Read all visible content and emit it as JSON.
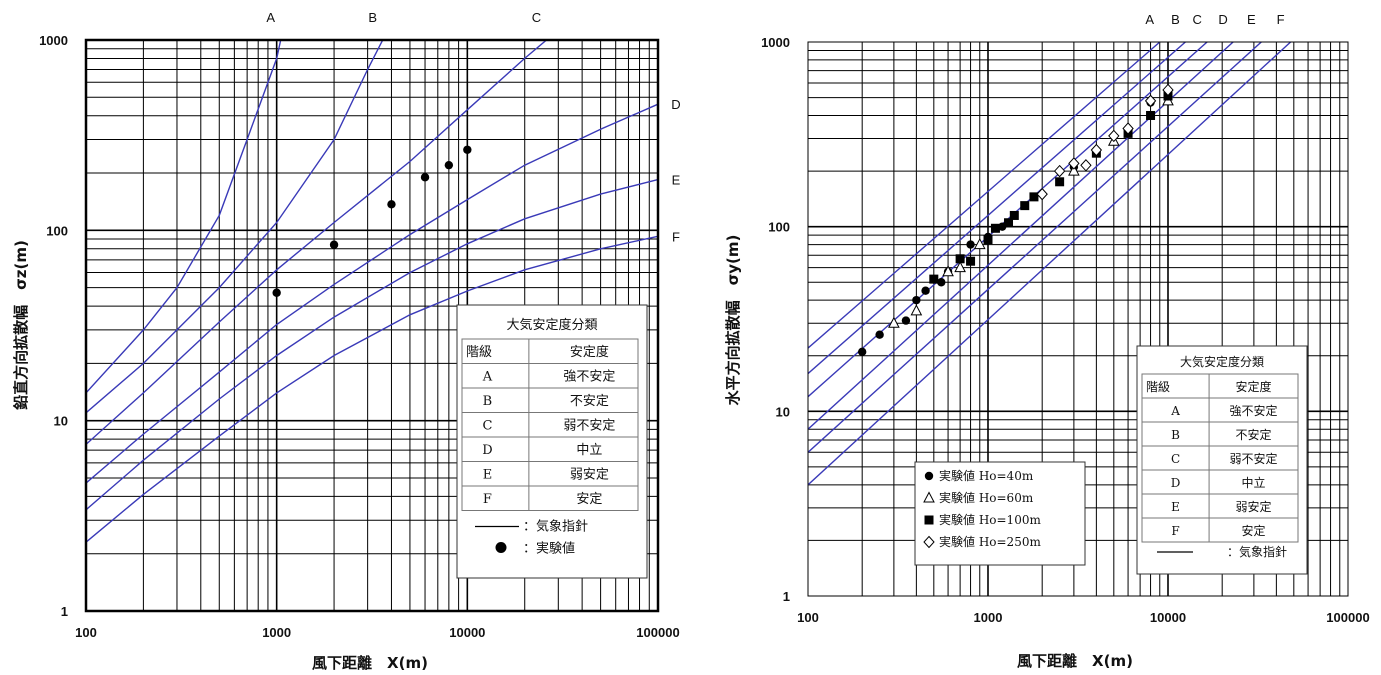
{
  "chart_data": [
    {
      "type": "line",
      "title": "",
      "xlabel": "風下距離　X(m)",
      "ylabel": "鉛直方向拡散幅　σz(m)",
      "xscale": "log",
      "yscale": "log",
      "xlim": [
        100,
        100000
      ],
      "ylim": [
        1,
        1000
      ],
      "x_tick_labels": [
        "100",
        "1000",
        "10000",
        "100000"
      ],
      "y_tick_labels": [
        "1",
        "10",
        "100",
        "1000"
      ],
      "grid": true,
      "line_color": "#3a3ab8",
      "series": [
        {
          "name": "A",
          "x": [
            100,
            200,
            300,
            500,
            700,
            1000,
            1050
          ],
          "y": [
            14,
            30,
            50,
            120,
            300,
            800,
            1000
          ]
        },
        {
          "name": "B",
          "x": [
            100,
            200,
            500,
            1000,
            2000,
            3000,
            3600
          ],
          "y": [
            11,
            20,
            50,
            110,
            300,
            700,
            1000
          ]
        },
        {
          "name": "C",
          "x": [
            100,
            200,
            500,
            1000,
            2000,
            5000,
            10000,
            20000,
            26000
          ],
          "y": [
            7.5,
            14,
            33,
            62,
            110,
            230,
            430,
            800,
            1000
          ]
        },
        {
          "name": "D",
          "x": [
            100,
            200,
            500,
            1000,
            2000,
            5000,
            10000,
            20000,
            50000,
            100000
          ],
          "y": [
            4.7,
            8.5,
            18,
            32,
            52,
            95,
            145,
            220,
            340,
            460
          ]
        },
        {
          "name": "E",
          "x": [
            100,
            200,
            500,
            1000,
            2000,
            5000,
            10000,
            20000,
            50000,
            100000
          ],
          "y": [
            3.4,
            6.2,
            13,
            22,
            35,
            60,
            85,
            115,
            155,
            185
          ]
        },
        {
          "name": "F",
          "x": [
            100,
            200,
            500,
            1000,
            2000,
            5000,
            10000,
            20000,
            50000,
            100000
          ],
          "y": [
            2.3,
            4.1,
            8.3,
            14,
            22,
            36,
            48,
            62,
            80,
            93
          ]
        }
      ],
      "points": [
        {
          "x": 1000,
          "y": 47
        },
        {
          "x": 2000,
          "y": 84
        },
        {
          "x": 4000,
          "y": 137
        },
        {
          "x": 6000,
          "y": 190
        },
        {
          "x": 8000,
          "y": 220
        },
        {
          "x": 10000,
          "y": 265
        }
      ],
      "legend": {
        "title": "大気安定度分類",
        "header": [
          "階級",
          "安定度"
        ],
        "rows": [
          [
            "A",
            "強不安定"
          ],
          [
            "B",
            "不安定"
          ],
          [
            "C",
            "弱不安定"
          ],
          [
            "D",
            "中立"
          ],
          [
            "E",
            "弱安定"
          ],
          [
            "F",
            "安定"
          ]
        ],
        "line_label": "：気象指針",
        "point_label": "：実験値",
        "position": "bottom-right"
      }
    },
    {
      "type": "line",
      "title": "",
      "xlabel": "風下距離　X(m)",
      "ylabel": "水平方向拡散幅　σy(m)",
      "xscale": "log",
      "yscale": "log",
      "xlim": [
        100,
        100000
      ],
      "ylim": [
        1,
        1000
      ],
      "x_tick_labels": [
        "100",
        "1000",
        "10000",
        "100000"
      ],
      "y_tick_labels": [
        "1",
        "10",
        "100",
        "1000"
      ],
      "grid": true,
      "line_color": "#3a3ab8",
      "series": [
        {
          "name": "A",
          "x": [
            100,
            9000
          ],
          "y": [
            22,
            1000
          ]
        },
        {
          "name": "B",
          "x": [
            100,
            12500
          ],
          "y": [
            16,
            1000
          ]
        },
        {
          "name": "C",
          "x": [
            100,
            16500
          ],
          "y": [
            12,
            1000
          ]
        },
        {
          "name": "D",
          "x": [
            100,
            23000
          ],
          "y": [
            8,
            1000
          ]
        },
        {
          "name": "E",
          "x": [
            100,
            33000
          ],
          "y": [
            6,
            1000
          ]
        },
        {
          "name": "F",
          "x": [
            100,
            48000
          ],
          "y": [
            4,
            1000
          ]
        }
      ],
      "scatter_series": [
        {
          "name": "実験値 Ho=40m",
          "marker": "filled-circle",
          "points": [
            {
              "x": 200,
              "y": 21
            },
            {
              "x": 250,
              "y": 26
            },
            {
              "x": 350,
              "y": 31
            },
            {
              "x": 400,
              "y": 40
            },
            {
              "x": 450,
              "y": 45
            },
            {
              "x": 550,
              "y": 50
            },
            {
              "x": 600,
              "y": 57
            },
            {
              "x": 800,
              "y": 80
            },
            {
              "x": 1000,
              "y": 88
            },
            {
              "x": 1200,
              "y": 100
            },
            {
              "x": 3000,
              "y": 210
            },
            {
              "x": 8000,
              "y": 470
            }
          ]
        },
        {
          "name": "実験値 Ho=60m",
          "marker": "open-triangle",
          "points": [
            {
              "x": 300,
              "y": 30
            },
            {
              "x": 400,
              "y": 35
            },
            {
              "x": 600,
              "y": 57
            },
            {
              "x": 700,
              "y": 60
            },
            {
              "x": 900,
              "y": 80
            },
            {
              "x": 3000,
              "y": 200
            },
            {
              "x": 5000,
              "y": 290
            },
            {
              "x": 10000,
              "y": 480
            }
          ]
        },
        {
          "name": "実験値 Ho=100m",
          "marker": "filled-square",
          "points": [
            {
              "x": 500,
              "y": 52
            },
            {
              "x": 700,
              "y": 67
            },
            {
              "x": 800,
              "y": 65
            },
            {
              "x": 1000,
              "y": 85
            },
            {
              "x": 1100,
              "y": 98
            },
            {
              "x": 1300,
              "y": 105
            },
            {
              "x": 1400,
              "y": 115
            },
            {
              "x": 1600,
              "y": 130
            },
            {
              "x": 1800,
              "y": 145
            },
            {
              "x": 2500,
              "y": 175
            },
            {
              "x": 4000,
              "y": 250
            },
            {
              "x": 6000,
              "y": 320
            },
            {
              "x": 8000,
              "y": 400
            },
            {
              "x": 10000,
              "y": 510
            }
          ]
        },
        {
          "name": "実験値 Ho=250m",
          "marker": "open-diamond",
          "points": [
            {
              "x": 2000,
              "y": 150
            },
            {
              "x": 2500,
              "y": 200
            },
            {
              "x": 3000,
              "y": 220
            },
            {
              "x": 3500,
              "y": 215
            },
            {
              "x": 4000,
              "y": 260
            },
            {
              "x": 5000,
              "y": 310
            },
            {
              "x": 6000,
              "y": 340
            },
            {
              "x": 8000,
              "y": 480
            },
            {
              "x": 10000,
              "y": 550
            }
          ]
        }
      ],
      "legend": {
        "title": "大気安定度分類",
        "header": [
          "階級",
          "安定度"
        ],
        "rows": [
          [
            "A",
            "強不安定"
          ],
          [
            "B",
            "不安定"
          ],
          [
            "C",
            "弱不安定"
          ],
          [
            "D",
            "中立"
          ],
          [
            "E",
            "弱安定"
          ],
          [
            "F",
            "安定"
          ]
        ],
        "line_label": "：気象指針",
        "position": "bottom-right"
      }
    }
  ]
}
